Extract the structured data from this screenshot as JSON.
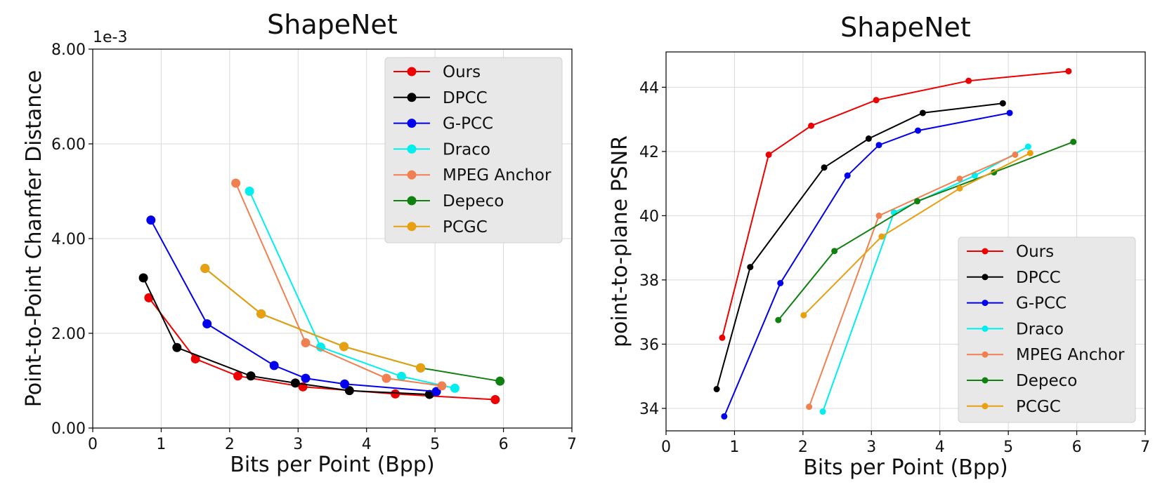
{
  "chart_data": [
    {
      "type": "line",
      "title": "ShapeNet",
      "xlabel": "Bits per Point (Bpp)",
      "ylabel": "Point-to-Point Chamfer Distance",
      "y_offset_label": "1e-3",
      "xlim": [
        0,
        7
      ],
      "ylim": [
        0,
        8
      ],
      "xticks": [
        0,
        1,
        2,
        3,
        4,
        5,
        6,
        7
      ],
      "xtick_labels": [
        "0",
        "1",
        "2",
        "3",
        "4",
        "5",
        "6",
        "7"
      ],
      "yticks": [
        0,
        2,
        4,
        6,
        8
      ],
      "ytick_labels": [
        "0.00",
        "2.00",
        "4.00",
        "6.00",
        "8.00"
      ],
      "grid": true,
      "legend_position": "top-right",
      "series": [
        {
          "name": "Ours",
          "color": "#ee0000",
          "x": [
            0.82,
            1.5,
            2.12,
            3.07,
            4.42,
            5.88
          ],
          "y": [
            2.75,
            1.46,
            1.1,
            0.87,
            0.72,
            0.6
          ]
        },
        {
          "name": "DPCC",
          "color": "#000000",
          "x": [
            0.74,
            1.23,
            2.31,
            2.96,
            3.75,
            4.92
          ],
          "y": [
            3.17,
            1.7,
            1.1,
            0.95,
            0.79,
            0.71
          ]
        },
        {
          "name": "G-PCC",
          "color": "#0000ee",
          "x": [
            0.85,
            1.67,
            2.65,
            3.11,
            3.68,
            5.02
          ],
          "y": [
            4.39,
            2.2,
            1.32,
            1.05,
            0.93,
            0.77
          ]
        },
        {
          "name": "Draco",
          "color": "#00eeee",
          "x": [
            2.29,
            3.33,
            4.51,
            5.29
          ],
          "y": [
            5.0,
            1.71,
            1.09,
            0.84
          ]
        },
        {
          "name": "MPEG Anchor",
          "color": "#f08050",
          "x": [
            2.09,
            3.11,
            4.29,
            5.1
          ],
          "y": [
            5.17,
            1.8,
            1.05,
            0.89
          ]
        },
        {
          "name": "Depeco",
          "color": "#108010",
          "x": [
            1.64,
            2.46,
            3.67,
            4.79,
            5.95
          ],
          "y": [
            3.37,
            2.41,
            1.72,
            1.27,
            0.99
          ]
        },
        {
          "name": "PCGC",
          "color": "#e8a010",
          "x": [
            1.64,
            2.46,
            3.67,
            4.79
          ],
          "y": [
            3.37,
            2.41,
            1.72,
            1.27
          ]
        }
      ]
    },
    {
      "type": "line",
      "title": "ShapeNet",
      "xlabel": "Bits per Point (Bpp)",
      "ylabel": "point-to-plane PSNR",
      "xlim": [
        0,
        7
      ],
      "ylim": [
        33.3,
        45.1
      ],
      "xticks": [
        0,
        1,
        2,
        3,
        4,
        5,
        6,
        7
      ],
      "xtick_labels": [
        "0",
        "1",
        "2",
        "3",
        "4",
        "5",
        "6",
        "7"
      ],
      "yticks": [
        34,
        36,
        38,
        40,
        42,
        44
      ],
      "ytick_labels": [
        "34",
        "36",
        "38",
        "40",
        "42",
        "44"
      ],
      "grid": true,
      "legend_position": "lower-right",
      "series": [
        {
          "name": "Ours",
          "color": "#ee0000",
          "x": [
            0.82,
            1.5,
            2.12,
            3.07,
            4.42,
            5.88
          ],
          "y": [
            36.2,
            41.9,
            42.8,
            43.6,
            44.2,
            44.5
          ]
        },
        {
          "name": "DPCC",
          "color": "#000000",
          "x": [
            0.74,
            1.23,
            2.31,
            2.96,
            3.75,
            4.92
          ],
          "y": [
            34.6,
            38.4,
            41.5,
            42.4,
            43.2,
            43.5
          ]
        },
        {
          "name": "G-PCC",
          "color": "#0000ee",
          "x": [
            0.85,
            1.67,
            2.65,
            3.11,
            3.68,
            5.02
          ],
          "y": [
            33.75,
            37.9,
            41.25,
            42.2,
            42.65,
            43.2
          ]
        },
        {
          "name": "Draco",
          "color": "#00eeee",
          "x": [
            2.29,
            3.33,
            4.51,
            5.29
          ],
          "y": [
            33.9,
            40.1,
            41.25,
            42.15
          ]
        },
        {
          "name": "MPEG Anchor",
          "color": "#f08050",
          "x": [
            2.09,
            3.11,
            4.29,
            5.1
          ],
          "y": [
            34.05,
            40.0,
            41.15,
            41.9
          ]
        },
        {
          "name": "Depeco",
          "color": "#108010",
          "x": [
            1.64,
            2.46,
            3.67,
            4.79,
            5.95
          ],
          "y": [
            36.75,
            38.9,
            40.45,
            41.35,
            42.3
          ]
        },
        {
          "name": "PCGC",
          "color": "#e8a010",
          "x": [
            2.01,
            3.15,
            4.29,
            5.32
          ],
          "y": [
            36.9,
            39.35,
            40.85,
            41.95
          ]
        }
      ]
    }
  ]
}
